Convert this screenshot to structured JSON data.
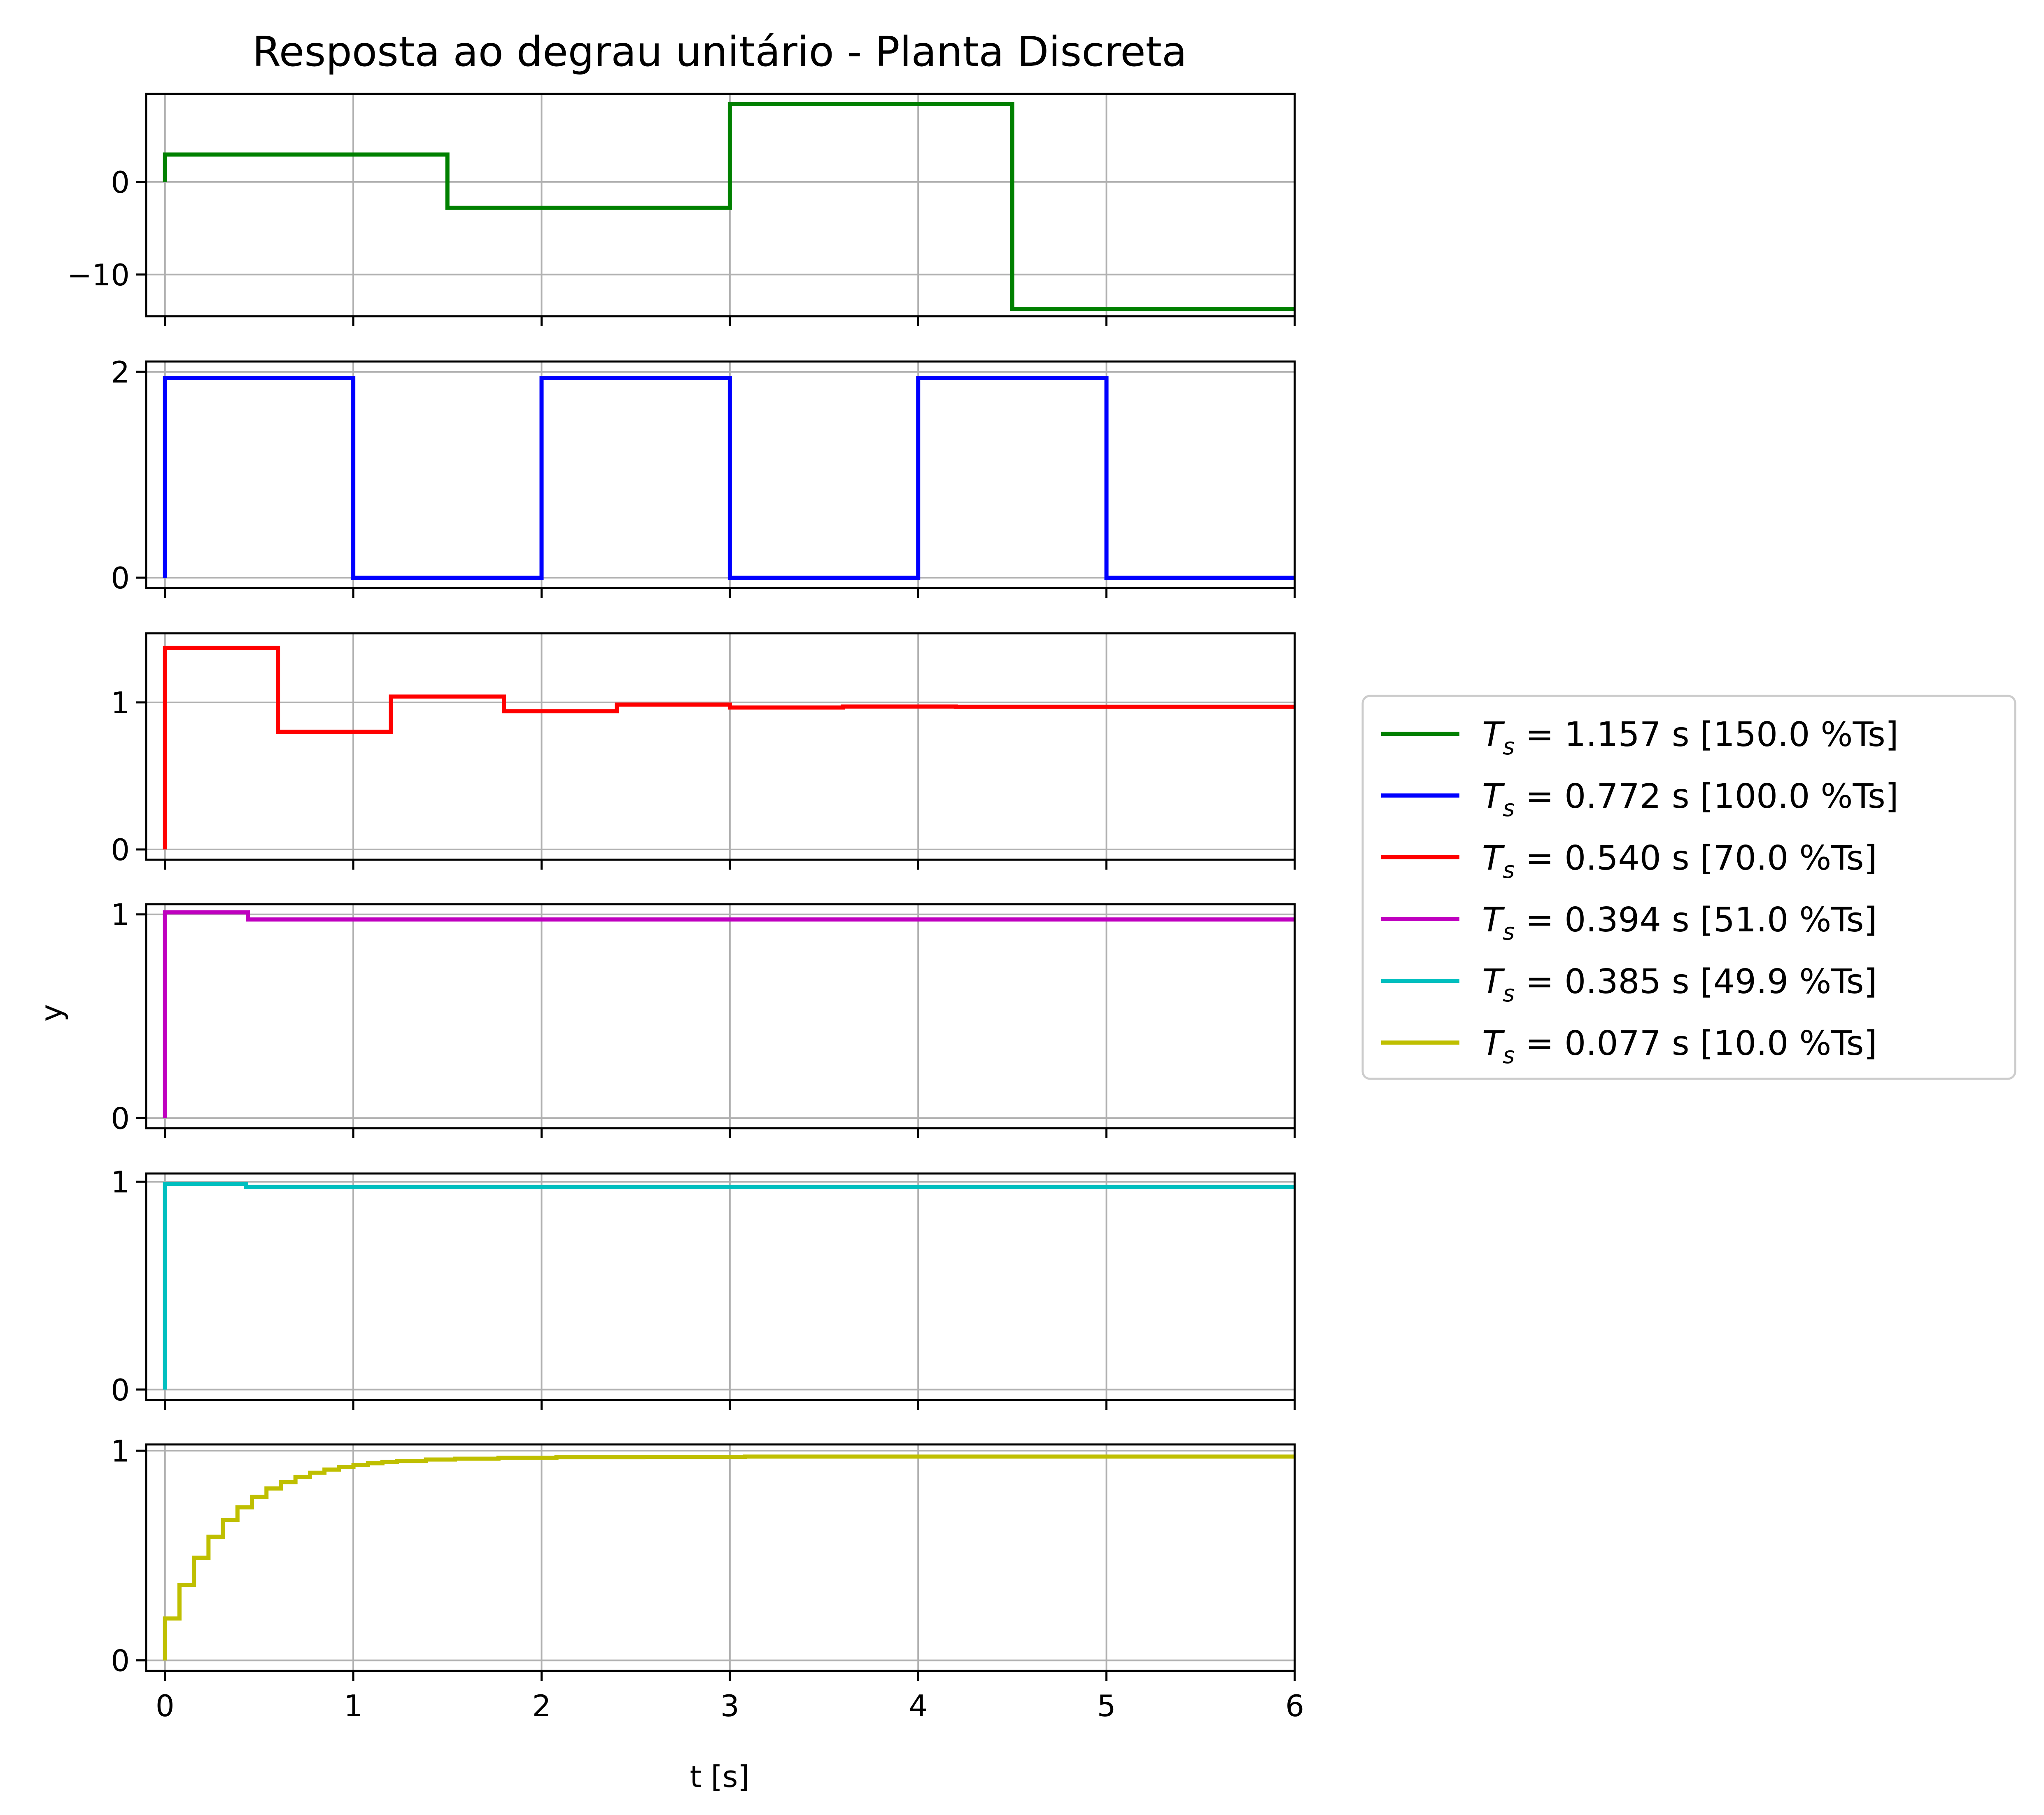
{
  "chart_data": {
    "type": "line",
    "title": "Resposta ao degrau unitário - Planta Discreta",
    "xlabel": "t [s]",
    "ylabel": "y",
    "xlim": [
      -0.1,
      6
    ],
    "x_ticks": [
      0,
      1,
      2,
      3,
      4,
      5,
      6
    ],
    "x_tick_labels": [
      "0",
      "1",
      "2",
      "3",
      "4",
      "5",
      "6"
    ],
    "grid": true,
    "legend_position": "center-right",
    "series": [
      {
        "name": "$T_s$ = 1.157 s [150.0 %Ts]",
        "legend_prefix": "T",
        "legend_sub": "s",
        "legend_rest": " = 1.157 s [150.0 %Ts]",
        "color": "#008000",
        "ylim": [
          -14.5,
          9.5
        ],
        "y_ticks": [
          -10,
          0
        ],
        "y_tick_labels": [
          "−10",
          "0"
        ],
        "steps": [
          {
            "t": 0,
            "y": 0
          },
          {
            "t": 0.0,
            "y": 2.95
          },
          {
            "t": 1.5,
            "y": -2.8
          },
          {
            "t": 3.0,
            "y": 8.4
          },
          {
            "t": 4.5,
            "y": -13.7
          },
          {
            "t": 6.0,
            "y": -13.7
          }
        ]
      },
      {
        "name": "$T_s$ = 0.772 s [100.0 %Ts]",
        "legend_prefix": "T",
        "legend_sub": "s",
        "legend_rest": " = 0.772 s [100.0 %Ts]",
        "color": "#0000ff",
        "ylim": [
          -0.1,
          2.1
        ],
        "y_ticks": [
          0,
          2
        ],
        "y_tick_labels": [
          "0",
          "2"
        ],
        "steps": [
          {
            "t": 0,
            "y": 0
          },
          {
            "t": 0.0,
            "y": 1.94
          },
          {
            "t": 1.0,
            "y": 0
          },
          {
            "t": 2.0,
            "y": 1.94
          },
          {
            "t": 3.0,
            "y": 0
          },
          {
            "t": 4.0,
            "y": 1.94
          },
          {
            "t": 5.0,
            "y": 0
          },
          {
            "t": 6.0,
            "y": 0
          }
        ]
      },
      {
        "name": "$T_s$ = 0.540 s [70.0 %Ts]",
        "legend_prefix": "T",
        "legend_sub": "s",
        "legend_rest": " = 0.540 s [70.0 %Ts]",
        "color": "#ff0000",
        "ylim": [
          -0.07,
          1.47
        ],
        "y_ticks": [
          0,
          1
        ],
        "y_tick_labels": [
          "0",
          "1"
        ],
        "steps": [
          {
            "t": 0,
            "y": 0
          },
          {
            "t": 0.0,
            "y": 1.37
          },
          {
            "t": 0.6,
            "y": 0.8
          },
          {
            "t": 1.2,
            "y": 1.04
          },
          {
            "t": 1.8,
            "y": 0.94
          },
          {
            "t": 2.4,
            "y": 0.985
          },
          {
            "t": 3.0,
            "y": 0.965
          },
          {
            "t": 3.6,
            "y": 0.972
          },
          {
            "t": 4.2,
            "y": 0.97
          },
          {
            "t": 6.0,
            "y": 0.97
          }
        ]
      },
      {
        "name": "$T_s$ = 0.394 s [51.0 %Ts]",
        "legend_prefix": "T",
        "legend_sub": "s",
        "legend_rest": " = 0.394 s [51.0 %Ts]",
        "color": "#bf00bf",
        "ylim": [
          -0.05,
          1.05
        ],
        "y_ticks": [
          0,
          1
        ],
        "y_tick_labels": [
          "0",
          "1"
        ],
        "steps": [
          {
            "t": 0,
            "y": 0
          },
          {
            "t": 0.0,
            "y": 1.01
          },
          {
            "t": 0.44,
            "y": 0.975
          },
          {
            "t": 6.0,
            "y": 0.975
          }
        ]
      },
      {
        "name": "$T_s$ = 0.385 s [49.9 %Ts]",
        "legend_prefix": "T",
        "legend_sub": "s",
        "legend_rest": " = 0.385 s [49.9 %Ts]",
        "color": "#00bfbf",
        "ylim": [
          -0.05,
          1.04
        ],
        "y_ticks": [
          0,
          1
        ],
        "y_tick_labels": [
          "0",
          "1"
        ],
        "steps": [
          {
            "t": 0,
            "y": 0
          },
          {
            "t": 0.0,
            "y": 0.99
          },
          {
            "t": 0.43,
            "y": 0.975
          },
          {
            "t": 6.0,
            "y": 0.975
          }
        ]
      },
      {
        "name": "$T_s$ = 0.077 s [10.0 %Ts]",
        "legend_prefix": "T",
        "legend_sub": "s",
        "legend_rest": " = 0.077 s [10.0 %Ts]",
        "color": "#bfbf00",
        "ylim": [
          -0.05,
          1.03
        ],
        "y_ticks": [
          0,
          1
        ],
        "y_tick_labels": [
          "0",
          "1"
        ],
        "steps": [
          {
            "t": 0,
            "y": 0
          },
          {
            "t": 0.0,
            "y": 0.2
          },
          {
            "t": 0.077,
            "y": 0.36
          },
          {
            "t": 0.154,
            "y": 0.49
          },
          {
            "t": 0.231,
            "y": 0.59
          },
          {
            "t": 0.308,
            "y": 0.67
          },
          {
            "t": 0.385,
            "y": 0.73
          },
          {
            "t": 0.462,
            "y": 0.78
          },
          {
            "t": 0.539,
            "y": 0.82
          },
          {
            "t": 0.616,
            "y": 0.85
          },
          {
            "t": 0.693,
            "y": 0.875
          },
          {
            "t": 0.77,
            "y": 0.895
          },
          {
            "t": 0.847,
            "y": 0.91
          },
          {
            "t": 0.924,
            "y": 0.922
          },
          {
            "t": 1.001,
            "y": 0.932
          },
          {
            "t": 1.078,
            "y": 0.94
          },
          {
            "t": 1.155,
            "y": 0.946
          },
          {
            "t": 1.232,
            "y": 0.951
          },
          {
            "t": 1.386,
            "y": 0.958
          },
          {
            "t": 1.54,
            "y": 0.962
          },
          {
            "t": 1.771,
            "y": 0.966
          },
          {
            "t": 2.079,
            "y": 0.969
          },
          {
            "t": 2.541,
            "y": 0.971
          },
          {
            "t": 3.08,
            "y": 0.972
          },
          {
            "t": 6.0,
            "y": 0.972
          }
        ]
      }
    ]
  }
}
